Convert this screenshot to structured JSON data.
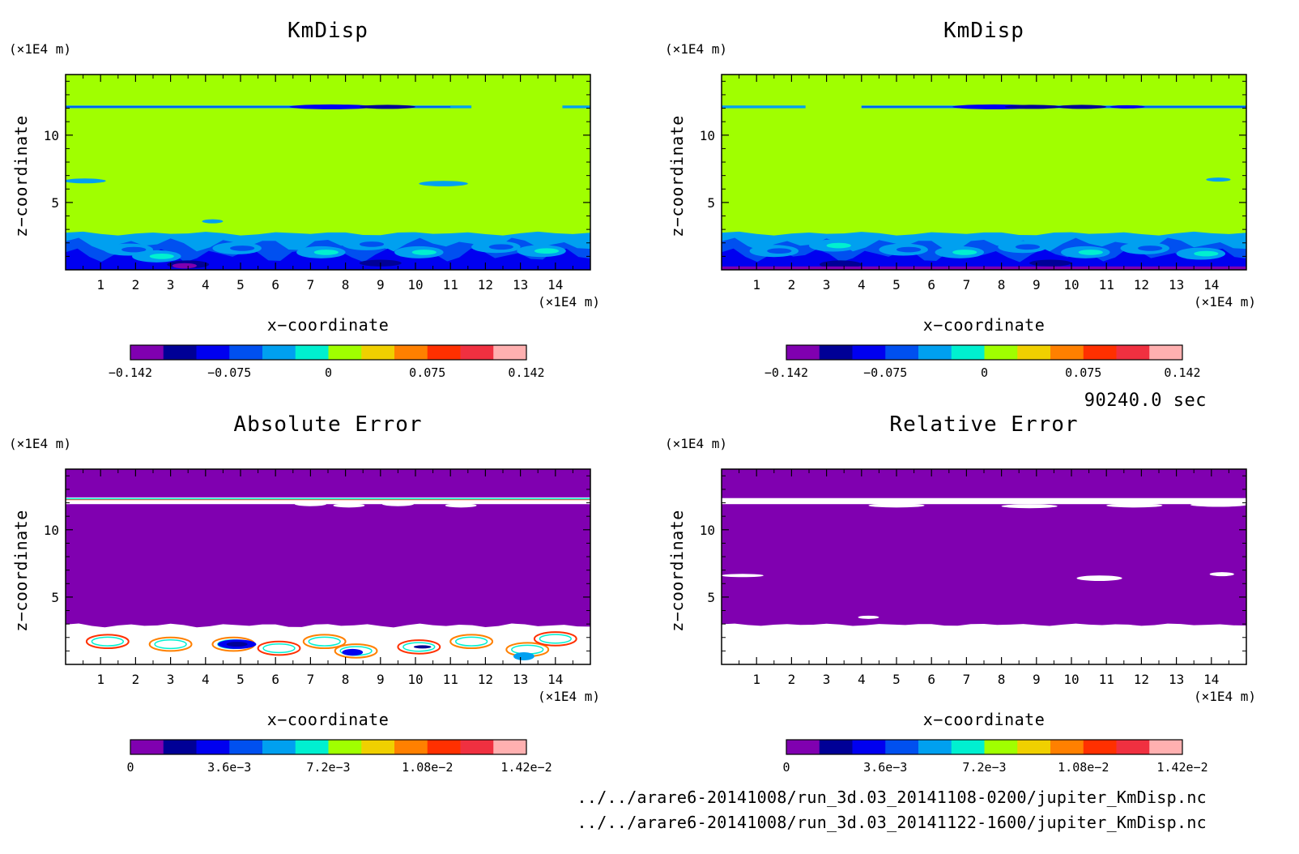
{
  "time_label": "90240.0 sec",
  "files": [
    "../../arare6-20141008/run_3d.03_20141108-0200/jupiter_KmDisp.nc",
    "../../arare6-20141008/run_3d.03_20141122-1600/jupiter_KmDisp.nc"
  ],
  "colors": {
    "purple": "#8000b0",
    "navy": "#000096",
    "blue": "#0000f0",
    "mid_blue": "#0050f0",
    "sky": "#00a0f0",
    "cyan": "#00f0d0",
    "lime": "#a0ff00",
    "yellow": "#f0d000",
    "orange": "#ff8000",
    "red": "#ff3000",
    "crimson": "#f03040",
    "pink": "#ffb0b0",
    "white": "#ffffff"
  },
  "chart_data": [
    {
      "type": "heatmap",
      "title": "KmDisp",
      "xlabel": "x−coordinate",
      "ylabel": "z−coordinate",
      "x_unit": "(×1E4 m)",
      "y_unit": "(×1E4 m)",
      "xlim": [
        0,
        15
      ],
      "ylim": [
        0,
        14.5
      ],
      "x_ticks": [
        "1",
        "2",
        "3",
        "4",
        "5",
        "6",
        "7",
        "8",
        "9",
        "10",
        "11",
        "12",
        "13",
        "14"
      ],
      "y_ticks": [
        "5",
        "10"
      ],
      "colorbar": {
        "ticks": [
          "−0.142",
          "−0.075",
          "0",
          "0.075",
          "0.142"
        ],
        "colors": [
          "#8000b0",
          "#000096",
          "#0000f0",
          "#0050f0",
          "#00a0f0",
          "#00f0d0",
          "#a0ff00",
          "#f0d000",
          "#ff8000",
          "#ff3000",
          "#f03040",
          "#ffb0b0"
        ]
      },
      "field": "kmdisp_a"
    },
    {
      "type": "heatmap",
      "title": "KmDisp",
      "xlabel": "x−coordinate",
      "ylabel": "z−coordinate",
      "x_unit": "(×1E4 m)",
      "y_unit": "(×1E4 m)",
      "xlim": [
        0,
        15
      ],
      "ylim": [
        0,
        14.5
      ],
      "x_ticks": [
        "1",
        "2",
        "3",
        "4",
        "5",
        "6",
        "7",
        "8",
        "9",
        "10",
        "11",
        "12",
        "13",
        "14"
      ],
      "y_ticks": [
        "5",
        "10"
      ],
      "colorbar": {
        "ticks": [
          "−0.142",
          "−0.075",
          "0",
          "0.075",
          "0.142"
        ],
        "colors": [
          "#8000b0",
          "#000096",
          "#0000f0",
          "#0050f0",
          "#00a0f0",
          "#00f0d0",
          "#a0ff00",
          "#f0d000",
          "#ff8000",
          "#ff3000",
          "#f03040",
          "#ffb0b0"
        ]
      },
      "field": "kmdisp_b"
    },
    {
      "type": "heatmap",
      "title": "Absolute Error",
      "xlabel": "x−coordinate",
      "ylabel": "z−coordinate",
      "x_unit": "(×1E4 m)",
      "y_unit": "(×1E4 m)",
      "xlim": [
        0,
        15
      ],
      "ylim": [
        0,
        14.5
      ],
      "x_ticks": [
        "1",
        "2",
        "3",
        "4",
        "5",
        "6",
        "7",
        "8",
        "9",
        "10",
        "11",
        "12",
        "13",
        "14"
      ],
      "y_ticks": [
        "5",
        "10"
      ],
      "colorbar": {
        "ticks": [
          "0",
          "3.6e−3",
          "7.2e−3",
          "1.08e−2",
          "1.42e−2"
        ],
        "colors": [
          "#8000b0",
          "#000096",
          "#0000f0",
          "#0050f0",
          "#00a0f0",
          "#00f0d0",
          "#a0ff00",
          "#f0d000",
          "#ff8000",
          "#ff3000",
          "#f03040",
          "#ffb0b0"
        ]
      },
      "field": "abs_error"
    },
    {
      "type": "heatmap",
      "title": "Relative Error",
      "xlabel": "x−coordinate",
      "ylabel": "z−coordinate",
      "x_unit": "(×1E4 m)",
      "y_unit": "(×1E4 m)",
      "xlim": [
        0,
        15
      ],
      "ylim": [
        0,
        14.5
      ],
      "x_ticks": [
        "1",
        "2",
        "3",
        "4",
        "5",
        "6",
        "7",
        "8",
        "9",
        "10",
        "11",
        "12",
        "13",
        "14"
      ],
      "y_ticks": [
        "5",
        "10"
      ],
      "colorbar": {
        "ticks": [
          "0",
          "3.6e−3",
          "7.2e−3",
          "1.08e−2",
          "1.42e−2"
        ],
        "colors": [
          "#8000b0",
          "#000096",
          "#0000f0",
          "#0050f0",
          "#00a0f0",
          "#00f0d0",
          "#a0ff00",
          "#f0d000",
          "#ff8000",
          "#ff3000",
          "#f03040",
          "#ffb0b0"
        ]
      },
      "field": "rel_error"
    }
  ]
}
